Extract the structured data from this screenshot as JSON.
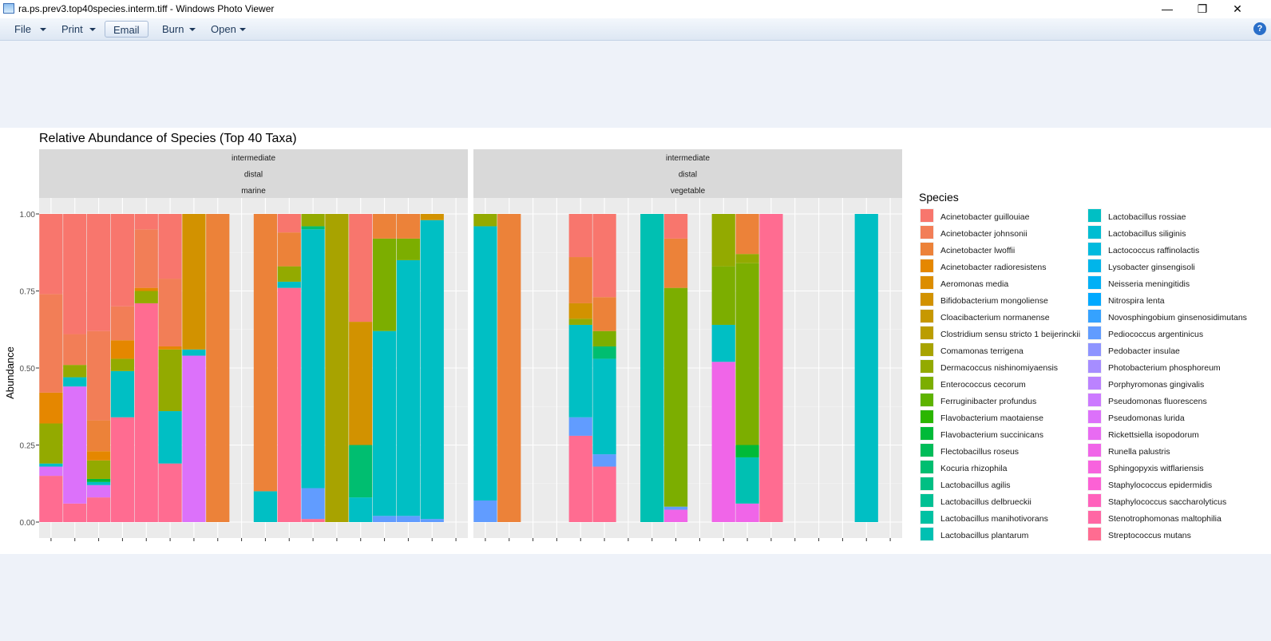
{
  "window": {
    "title": "ra.ps.prev3.top40species.interm.tiff - Windows Photo Viewer",
    "minimize_glyph": "—",
    "restore_glyph": "❐",
    "close_glyph": "✕"
  },
  "toolbar": {
    "file_label": "File",
    "print_label": "Print",
    "email_label": "Email",
    "burn_label": "Burn",
    "open_label": "Open",
    "help_glyph": "?"
  },
  "chart_data": {
    "type": "bar",
    "title": "Relative Abundance of Species (Top 40 Taxa)",
    "ylabel": "Abundance",
    "xlabel": "",
    "ylim": [
      0,
      1
    ],
    "yticks": [
      "0.00",
      "0.25",
      "0.50",
      "0.75",
      "1.00"
    ],
    "grid": true,
    "legend_position": "right",
    "legend_title": "Species",
    "species": [
      {
        "name": "Acinetobacter guillouiae",
        "color": "#F8766D"
      },
      {
        "name": "Acinetobacter johnsonii",
        "color": "#F27E57"
      },
      {
        "name": "Acinetobacter lwoffii",
        "color": "#EC8239"
      },
      {
        "name": "Acinetobacter radioresistens",
        "color": "#E58700"
      },
      {
        "name": "Aeromonas media",
        "color": "#DC8D00"
      },
      {
        "name": "Bifidobacterium mongoliense",
        "color": "#D29200"
      },
      {
        "name": "Cloacibacterium normanense",
        "color": "#C79800"
      },
      {
        "name": "Clostridium sensu stricto 1 beijerinckii",
        "color": "#BB9D00"
      },
      {
        "name": "Comamonas terrigena",
        "color": "#A8A300"
      },
      {
        "name": "Dermacoccus nishinomiyaensis",
        "color": "#93AA00"
      },
      {
        "name": "Enterococcus cecorum",
        "color": "#7CAE00"
      },
      {
        "name": "Ferruginibacter profundus",
        "color": "#5EB300"
      },
      {
        "name": "Flavobacterium maotaiense",
        "color": "#2BB600"
      },
      {
        "name": "Flavobacterium succinicans",
        "color": "#00BA38"
      },
      {
        "name": "Flectobacillus roseus",
        "color": "#00BC59"
      },
      {
        "name": "Kocuria rhizophila",
        "color": "#00BE70"
      },
      {
        "name": "Lactobacillus agilis",
        "color": "#00BF83"
      },
      {
        "name": "Lactobacillus delbrueckii",
        "color": "#00C094"
      },
      {
        "name": "Lactobacillus manihotivorans",
        "color": "#00C1A3"
      },
      {
        "name": "Lactobacillus plantarum",
        "color": "#00C0B2"
      },
      {
        "name": "Lactobacillus rossiae",
        "color": "#00BFC4"
      },
      {
        "name": "Lactobacillus siliginis",
        "color": "#00BDD2"
      },
      {
        "name": "Lactococcus raffinolactis",
        "color": "#00BADE"
      },
      {
        "name": "Lysobacter ginsengisoli",
        "color": "#00B5EA"
      },
      {
        "name": "Neisseria meningitidis",
        "color": "#00B0F6"
      },
      {
        "name": "Nitrospira lenta",
        "color": "#00A9FF"
      },
      {
        "name": "Novosphingobium ginsenosidimutans",
        "color": "#35A2FF"
      },
      {
        "name": "Pediococcus argentinicus",
        "color": "#619CFF"
      },
      {
        "name": "Pedobacter insulae",
        "color": "#8E94FF"
      },
      {
        "name": "Photobacterium phosphoreum",
        "color": "#A68DFF"
      },
      {
        "name": "Porphyromonas gingivalis",
        "color": "#BB82FF"
      },
      {
        "name": "Pseudomonas fluorescens",
        "color": "#CC7AFF"
      },
      {
        "name": "Pseudomonas lurida",
        "color": "#DC71FA"
      },
      {
        "name": "Rickettsiella isopodorum",
        "color": "#E86BF2"
      },
      {
        "name": "Runella palustris",
        "color": "#F065E8"
      },
      {
        "name": "Sphingopyxis witflariensis",
        "color": "#F763DE"
      },
      {
        "name": "Staphylococcus epidermidis",
        "color": "#FC61D5"
      },
      {
        "name": "Staphylococcus saccharolyticus",
        "color": "#FF62BC"
      },
      {
        "name": "Stenotrophomonas maltophilia",
        "color": "#FF67A4"
      },
      {
        "name": "Streptococcus mutans",
        "color": "#FF6C91"
      }
    ],
    "panels": [
      {
        "strips": [
          "intermediate",
          "distal",
          "marine"
        ],
        "n_samples": 18,
        "bars": [
          {
            "slot": 0,
            "stack": [
              [
                0.15,
                "#FF6C91"
              ],
              [
                0.03,
                "#DC71FA"
              ],
              [
                0.01,
                "#00BFC4"
              ],
              [
                0.13,
                "#93AA00"
              ],
              [
                0.1,
                "#E58700"
              ],
              [
                0.32,
                "#F27E57"
              ],
              [
                0.26,
                "#F8766D"
              ]
            ]
          },
          {
            "slot": 1,
            "stack": [
              [
                0.06,
                "#FF6C91"
              ],
              [
                0.38,
                "#DC71FA"
              ],
              [
                0.03,
                "#00BFC4"
              ],
              [
                0.04,
                "#93AA00"
              ],
              [
                0.1,
                "#F27E57"
              ],
              [
                0.39,
                "#F8766D"
              ]
            ]
          },
          {
            "slot": 2,
            "stack": [
              [
                0.08,
                "#FF6C91"
              ],
              [
                0.04,
                "#DC71FA"
              ],
              [
                0.01,
                "#00BFC4"
              ],
              [
                0.01,
                "#00BA38"
              ],
              [
                0.06,
                "#93AA00"
              ],
              [
                0.03,
                "#E58700"
              ],
              [
                0.1,
                "#EC8239"
              ],
              [
                0.29,
                "#F27E57"
              ],
              [
                0.38,
                "#F8766D"
              ]
            ]
          },
          {
            "slot": 3,
            "stack": [
              [
                0.34,
                "#FF6C91"
              ],
              [
                0.15,
                "#00BFC4"
              ],
              [
                0.04,
                "#93AA00"
              ],
              [
                0.06,
                "#E58700"
              ],
              [
                0.11,
                "#F27E57"
              ],
              [
                0.3,
                "#F8766D"
              ]
            ]
          },
          {
            "slot": 4,
            "stack": [
              [
                0.71,
                "#FF6C91"
              ],
              [
                0.04,
                "#93AA00"
              ],
              [
                0.01,
                "#E58700"
              ],
              [
                0.19,
                "#F27E57"
              ],
              [
                0.05,
                "#F8766D"
              ]
            ]
          },
          {
            "slot": 5,
            "stack": [
              [
                0.19,
                "#FF6C91"
              ],
              [
                0.17,
                "#00BFC4"
              ],
              [
                0.2,
                "#93AA00"
              ],
              [
                0.01,
                "#E58700"
              ],
              [
                0.22,
                "#F27E57"
              ],
              [
                0.21,
                "#F8766D"
              ]
            ]
          },
          {
            "slot": 6,
            "stack": [
              [
                0.54,
                "#DC71FA"
              ],
              [
                0.02,
                "#00BFC4"
              ],
              [
                0.44,
                "#D29200"
              ]
            ]
          },
          {
            "slot": 7,
            "stack": [
              [
                1.0,
                "#EC8239"
              ]
            ]
          },
          {
            "slot": 9,
            "stack": [
              [
                0.1,
                "#00BFC4"
              ],
              [
                0.9,
                "#EC8239"
              ]
            ]
          },
          {
            "slot": 10,
            "stack": [
              [
                0.76,
                "#FF6C91"
              ],
              [
                0.02,
                "#00BFC4"
              ],
              [
                0.05,
                "#93AA00"
              ],
              [
                0.11,
                "#EC8239"
              ],
              [
                0.06,
                "#F8766D"
              ]
            ]
          },
          {
            "slot": 11,
            "stack": [
              [
                0.01,
                "#FF6C91"
              ],
              [
                0.1,
                "#619CFF"
              ],
              [
                0.84,
                "#00BFC4"
              ],
              [
                0.01,
                "#00BE70"
              ],
              [
                0.04,
                "#93AA00"
              ]
            ]
          },
          {
            "slot": 12,
            "stack": [
              [
                1.0,
                "#A8A300"
              ]
            ]
          },
          {
            "slot": 13,
            "stack": [
              [
                0.08,
                "#00BFC4"
              ],
              [
                0.17,
                "#00BE70"
              ],
              [
                0.4,
                "#D29200"
              ],
              [
                0.35,
                "#F8766D"
              ]
            ]
          },
          {
            "slot": 14,
            "stack": [
              [
                0.02,
                "#619CFF"
              ],
              [
                0.6,
                "#00BFC4"
              ],
              [
                0.3,
                "#7CAE00"
              ],
              [
                0.08,
                "#EC8239"
              ]
            ]
          },
          {
            "slot": 15,
            "stack": [
              [
                0.02,
                "#619CFF"
              ],
              [
                0.83,
                "#00BFC4"
              ],
              [
                0.07,
                "#7CAE00"
              ],
              [
                0.08,
                "#EC8239"
              ]
            ]
          },
          {
            "slot": 16,
            "stack": [
              [
                0.01,
                "#619CFF"
              ],
              [
                0.97,
                "#00BFC4"
              ],
              [
                0.02,
                "#D29200"
              ]
            ]
          }
        ]
      },
      {
        "strips": [
          "intermediate",
          "distal",
          "vegetable"
        ],
        "n_samples": 18,
        "bars": [
          {
            "slot": 0,
            "stack": [
              [
                0.07,
                "#619CFF"
              ],
              [
                0.89,
                "#00BFC4"
              ],
              [
                0.04,
                "#93AA00"
              ]
            ]
          },
          {
            "slot": 1,
            "stack": [
              [
                1.0,
                "#EC8239"
              ]
            ]
          },
          {
            "slot": 4,
            "stack": [
              [
                0.28,
                "#FF6C91"
              ],
              [
                0.06,
                "#619CFF"
              ],
              [
                0.3,
                "#00BFC4"
              ],
              [
                0.02,
                "#93AA00"
              ],
              [
                0.05,
                "#D29200"
              ],
              [
                0.15,
                "#EC8239"
              ],
              [
                0.14,
                "#F8766D"
              ]
            ]
          },
          {
            "slot": 5,
            "stack": [
              [
                0.18,
                "#FF6C91"
              ],
              [
                0.04,
                "#619CFF"
              ],
              [
                0.31,
                "#00BFC4"
              ],
              [
                0.04,
                "#00BE70"
              ],
              [
                0.05,
                "#7CAE00"
              ],
              [
                0.11,
                "#EC8239"
              ],
              [
                0.27,
                "#F8766D"
              ]
            ]
          },
          {
            "slot": 7,
            "stack": [
              [
                1.0,
                "#00C0B2"
              ]
            ]
          },
          {
            "slot": 8,
            "stack": [
              [
                0.04,
                "#F065E8"
              ],
              [
                0.01,
                "#619CFF"
              ],
              [
                0.71,
                "#7CAE00"
              ],
              [
                0.16,
                "#EC8239"
              ],
              [
                0.08,
                "#F8766D"
              ]
            ]
          },
          {
            "slot": 10,
            "stack": [
              [
                0.52,
                "#F065E8"
              ],
              [
                0.12,
                "#00BFC4"
              ],
              [
                0.19,
                "#7CAE00"
              ],
              [
                0.17,
                "#93AA00"
              ]
            ]
          },
          {
            "slot": 11,
            "stack": [
              [
                0.06,
                "#F065E8"
              ],
              [
                0.15,
                "#00C0B2"
              ],
              [
                0.04,
                "#00BA38"
              ],
              [
                0.59,
                "#7CAE00"
              ],
              [
                0.03,
                "#93AA00"
              ],
              [
                0.13,
                "#EC8239"
              ]
            ]
          },
          {
            "slot": 12,
            "stack": [
              [
                1.0,
                "#FF6C91"
              ]
            ]
          },
          {
            "slot": 16,
            "stack": [
              [
                1.0,
                "#00BFC4"
              ]
            ]
          }
        ]
      }
    ]
  }
}
